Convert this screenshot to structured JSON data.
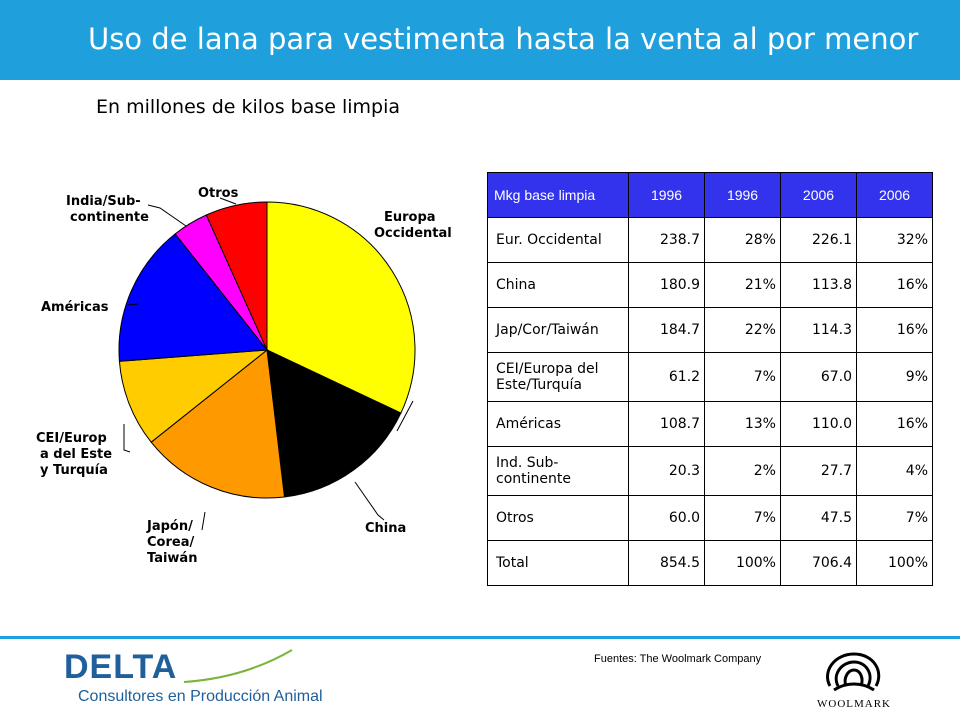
{
  "header": {
    "title": "Uso de lana para vestimenta hasta la venta al por menor",
    "subtitle": "En millones de kilos base limpia"
  },
  "colors": {
    "header_bar": "#1fa0dc",
    "table_header": "#3333ee"
  },
  "chart_data": {
    "type": "pie",
    "title": "",
    "slices": [
      {
        "label": "Europa Occidental",
        "value": 226.1,
        "color": "#ffff00"
      },
      {
        "label": "China",
        "value": 113.8,
        "color": "#000000"
      },
      {
        "label": "Japón/ Corea/ Taiwán",
        "value": 114.3,
        "color": "#ff9900"
      },
      {
        "label": "CEI/Europ a del Este y Turquía",
        "value": 67.0,
        "color": "#ffcc00"
      },
      {
        "label": "Américas",
        "value": 110.0,
        "color": "#0000ff"
      },
      {
        "label": "India/Sub- continente",
        "value": 27.7,
        "color": "#ff00ff"
      },
      {
        "label": "Otros",
        "value": 47.5,
        "color": "#ff0000"
      }
    ],
    "labels": {
      "europa": [
        "Europa",
        "Occidental"
      ],
      "china": [
        "China"
      ],
      "japon": [
        "Japón/",
        "Corea/",
        "Taiwán"
      ],
      "cei": [
        "CEI/Europ",
        "a del Este",
        "y Turquía"
      ],
      "americas": [
        "Américas"
      ],
      "india": [
        "India/Sub-",
        "continente"
      ],
      "otros": [
        "Otros"
      ]
    }
  },
  "table": {
    "headers": [
      "Mkg base limpia",
      "1996",
      "1996",
      "2006",
      "2006"
    ],
    "rows": [
      [
        "Eur. Occidental",
        "238.7",
        "28%",
        "226.1",
        "32%"
      ],
      [
        "China",
        "180.9",
        "21%",
        "113.8",
        "16%"
      ],
      [
        "Jap/Cor/Taiwán",
        "184.7",
        "22%",
        "114.3",
        "16%"
      ],
      [
        "CEI/Europa del Este/Turquía",
        "61.2",
        "7%",
        "67.0",
        "9%"
      ],
      [
        "Américas",
        "108.7",
        "13%",
        "110.0",
        "16%"
      ],
      [
        "Ind. Sub-continente",
        "20.3",
        "2%",
        "27.7",
        "4%"
      ],
      [
        "Otros",
        "60.0",
        "7%",
        "47.5",
        "7%"
      ],
      [
        "Total",
        "854.5",
        "100%",
        "706.4",
        "100%"
      ]
    ]
  },
  "footer": {
    "sources": "Fuentes: The Woolmark Company",
    "delta_logo": "DELTA",
    "delta_tagline": "Consultores en Producción Animal",
    "woolmark_logo": "WOOLMARK"
  }
}
